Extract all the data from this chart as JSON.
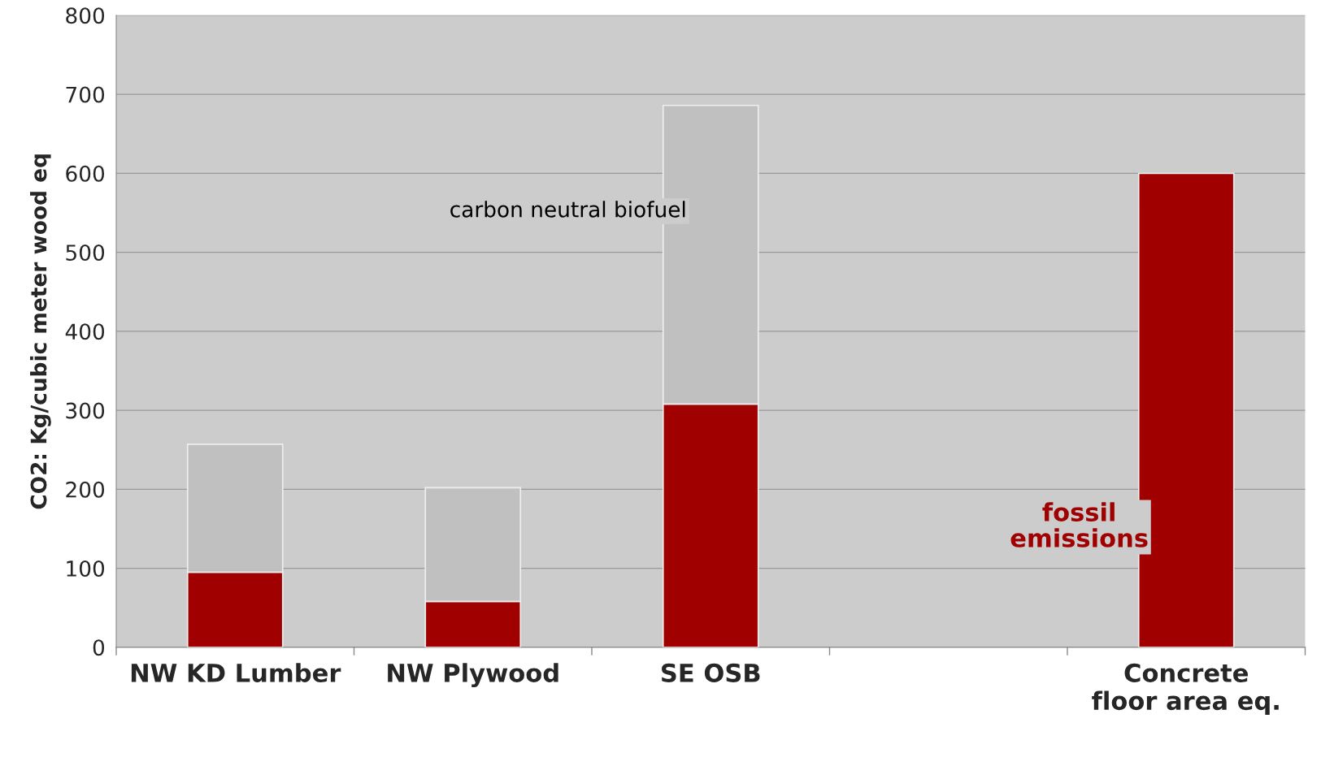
{
  "chart_data": {
    "type": "bar",
    "stacked": true,
    "ylabel": "CO2: Kg/cubic meter wood eq",
    "categories": [
      "NW KD Lumber",
      "NW Plywood",
      "SE OSB",
      null,
      "Concrete\nfloor area eq."
    ],
    "series": [
      {
        "name": "fossil emissions",
        "color": "#a00000",
        "values": [
          95,
          58,
          308,
          null,
          600
        ]
      },
      {
        "name": "carbon neutral biofuel",
        "color": "#c0c0c0",
        "values": [
          162,
          144,
          378,
          null,
          null
        ]
      }
    ],
    "ylim": [
      0,
      800
    ],
    "yticks": [
      0,
      100,
      200,
      300,
      400,
      500,
      600,
      700,
      800
    ],
    "grid": "y",
    "legend": false
  }
}
